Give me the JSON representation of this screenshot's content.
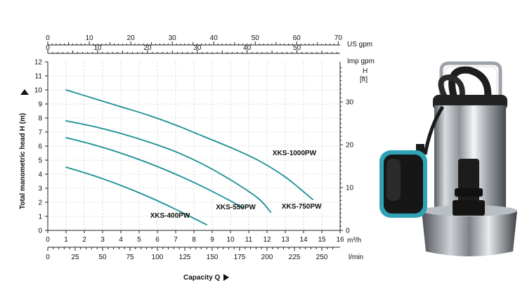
{
  "chart_data": {
    "type": "line",
    "title": "",
    "xlabel": "Capacity Q",
    "ylabel": "Total manometric head H (m)",
    "x_unit": "m³/h",
    "x_ticks": [
      0,
      1,
      2,
      3,
      4,
      5,
      6,
      7,
      8,
      9,
      10,
      11,
      12,
      13,
      14,
      15,
      16
    ],
    "xlim": [
      0,
      16
    ],
    "ylim": [
      0,
      12
    ],
    "y_ticks": [
      0,
      1,
      2,
      3,
      4,
      5,
      6,
      7,
      8,
      9,
      10,
      11,
      12
    ],
    "grid": true,
    "secondary_axes": {
      "us_gpm": {
        "label": "US gpm",
        "ticks": [
          0,
          10,
          20,
          30,
          40,
          50,
          60,
          70
        ]
      },
      "imp_gpm": {
        "label": "Imp gpm",
        "ticks": [
          0,
          10,
          20,
          30,
          40,
          50
        ]
      },
      "lmin": {
        "label": "l/min",
        "ticks": [
          0,
          25,
          50,
          75,
          100,
          125,
          150,
          175,
          200,
          225,
          250
        ]
      },
      "ft": {
        "label": "H\n[ft]",
        "label_top": "H",
        "label_bottom": "[ft]",
        "ticks": [
          0,
          10,
          20,
          30
        ]
      }
    },
    "series": [
      {
        "name": "XKS-400PW",
        "x": [
          1.0,
          2.5,
          4.0,
          5.5,
          7.0,
          8.7
        ],
        "y": [
          4.5,
          3.9,
          3.2,
          2.4,
          1.5,
          0.4
        ]
      },
      {
        "name": "XKS-550PW",
        "x": [
          1.0,
          2.5,
          4.0,
          5.5,
          7.0,
          8.5,
          10.0,
          10.7
        ],
        "y": [
          6.6,
          6.1,
          5.5,
          4.8,
          4.0,
          3.1,
          2.1,
          1.6
        ]
      },
      {
        "name": "XKS-750PW",
        "x": [
          1.0,
          2.5,
          4.0,
          5.5,
          7.0,
          8.5,
          10.0,
          11.5,
          12.2
        ],
        "y": [
          7.8,
          7.4,
          6.9,
          6.3,
          5.6,
          4.7,
          3.6,
          2.3,
          1.3
        ]
      },
      {
        "name": "XKS-1000PW",
        "x": [
          1.0,
          2.5,
          4.0,
          5.5,
          7.0,
          8.5,
          10.0,
          11.5,
          13.0,
          14.5
        ],
        "y": [
          10.0,
          9.4,
          8.8,
          8.2,
          7.5,
          6.7,
          5.9,
          5.0,
          3.8,
          2.2
        ]
      }
    ],
    "series_color": "#1a8f93"
  },
  "product_image": {
    "name": "submersible pump with float switch"
  }
}
